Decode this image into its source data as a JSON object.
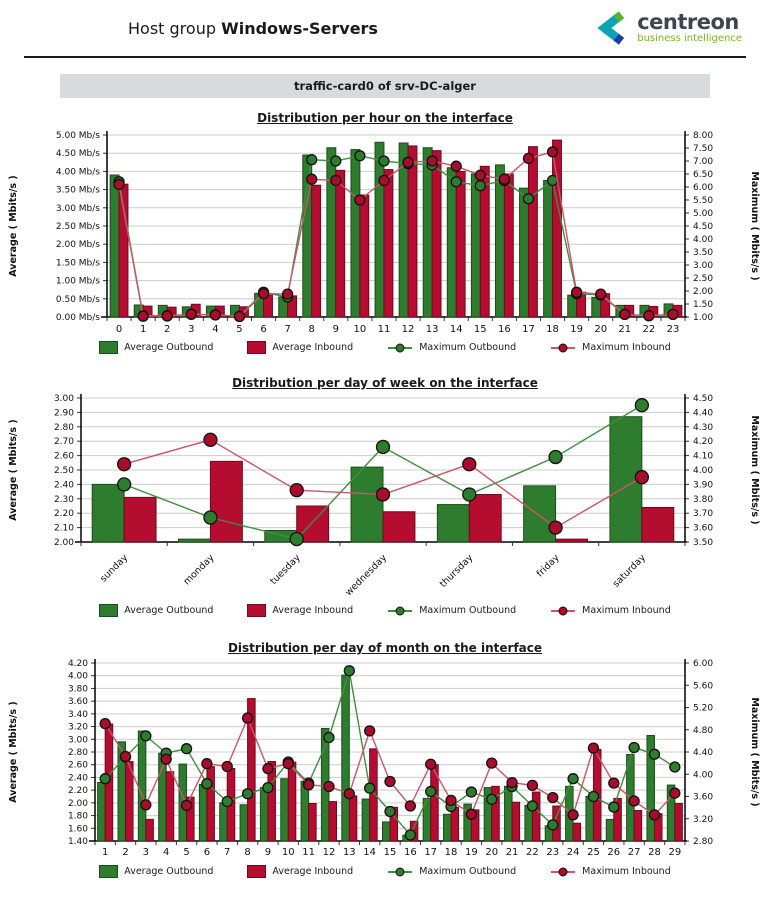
{
  "page": {
    "header": {
      "title_prefix": "Host group",
      "title_bold": "Windows-Servers"
    },
    "logo": {
      "brand": "centreon",
      "tagline": "business intelligence"
    },
    "section_title": "traffic-card0 of srv-DC-alger",
    "legend": {
      "avg_out": "Average Outbound",
      "avg_in": "Average Inbound",
      "max_out": "Maximum Outbound",
      "max_in": "Maximum Inbound"
    },
    "colors": {
      "bar_out": "#2e7d2e",
      "bar_out_stroke": "#1b4d1b",
      "bar_in": "#b50d30",
      "bar_in_stroke": "#6e0a1f",
      "line_out": "#3f8f3f",
      "line_in": "#c9566b",
      "dot_out": "#2e7d2e",
      "dot_in": "#a80e2c",
      "grid": "#cccccc",
      "axis": "#000000",
      "tagline_green": "#7ab51d",
      "brand_dark": "#3b4652",
      "logo_teal": "#0aa4b4",
      "logo_green": "#57b32b",
      "logo_blue": "#1c3e9d",
      "section_bg": "#d8dbdd"
    }
  },
  "chart_data": [
    {
      "type": "bar",
      "title": "Distribution per hour on the interface",
      "categories": [
        "0",
        "1",
        "2",
        "3",
        "4",
        "5",
        "6",
        "7",
        "8",
        "9",
        "10",
        "11",
        "12",
        "13",
        "14",
        "15",
        "16",
        "17",
        "18",
        "19",
        "20",
        "21",
        "22",
        "23"
      ],
      "left_axis": {
        "label": "Average ( Mbits/s )",
        "min": 0,
        "max": 5,
        "step": 0.5,
        "decimals": 2,
        "tick_suffix": " Mb/s"
      },
      "right_axis": {
        "label": "Maximum ( Mbits/s )",
        "min": 1,
        "max": 8,
        "step": 0.5,
        "decimals": 2
      },
      "grid": true,
      "legend_position": "bottom",
      "series": [
        {
          "name": "Average Outbound",
          "type": "bar",
          "axis": "left",
          "values": [
            3.9,
            0.33,
            0.32,
            0.28,
            0.3,
            0.32,
            0.65,
            0.55,
            4.45,
            4.65,
            4.6,
            4.8,
            4.78,
            4.65,
            4.1,
            3.93,
            4.18,
            3.54,
            3.75,
            0.6,
            0.54,
            0.32,
            0.32,
            0.36
          ]
        },
        {
          "name": "Average Inbound",
          "type": "bar",
          "axis": "left",
          "values": [
            3.65,
            0.3,
            0.27,
            0.35,
            0.3,
            0.28,
            0.6,
            0.58,
            3.62,
            4.03,
            3.35,
            4.05,
            4.7,
            4.57,
            4.0,
            4.14,
            3.93,
            4.68,
            4.86,
            0.68,
            0.64,
            0.32,
            0.29,
            0.32
          ]
        },
        {
          "name": "Maximum Outbound",
          "type": "line",
          "axis": "right",
          "values": [
            6.2,
            1.05,
            1.05,
            1.1,
            1.08,
            1.03,
            1.95,
            1.77,
            7.05,
            7.0,
            7.2,
            7.0,
            6.9,
            6.85,
            6.2,
            6.05,
            6.25,
            5.55,
            6.25,
            1.9,
            1.85,
            1.1,
            1.05,
            1.1
          ]
        },
        {
          "name": "Maximum Inbound",
          "type": "line",
          "axis": "right",
          "values": [
            6.1,
            1.03,
            1.04,
            1.11,
            1.08,
            1.02,
            1.9,
            1.88,
            6.3,
            6.25,
            5.5,
            6.25,
            6.95,
            7.0,
            6.8,
            6.45,
            6.3,
            7.1,
            7.35,
            1.95,
            1.88,
            1.1,
            1.05,
            1.1
          ]
        }
      ]
    },
    {
      "type": "bar",
      "title": "Distribution per day of week on the interface",
      "categories": [
        "sunday",
        "monday",
        "tuesday",
        "wednesday",
        "thursday",
        "friday",
        "saturday"
      ],
      "left_axis": {
        "label": "Average ( Mbits/s )",
        "min": 2.0,
        "max": 3.0,
        "step": 0.1,
        "decimals": 2,
        "tick_suffix": ""
      },
      "right_axis": {
        "label": "Maximum ( Mbits/s )",
        "min": 3.5,
        "max": 4.5,
        "step": 0.1,
        "decimals": 2
      },
      "grid": true,
      "legend_position": "bottom",
      "series": [
        {
          "name": "Average Outbound",
          "type": "bar",
          "axis": "left",
          "values": [
            2.4,
            2.02,
            2.08,
            2.52,
            2.26,
            2.39,
            2.87
          ]
        },
        {
          "name": "Average Inbound",
          "type": "bar",
          "axis": "left",
          "values": [
            2.31,
            2.56,
            2.25,
            2.21,
            2.33,
            2.02,
            2.24
          ]
        },
        {
          "name": "Maximum Outbound",
          "type": "line",
          "axis": "right",
          "values": [
            3.9,
            3.67,
            3.52,
            4.16,
            3.83,
            4.09,
            4.45
          ]
        },
        {
          "name": "Maximum Inbound",
          "type": "line",
          "axis": "right",
          "values": [
            4.04,
            4.21,
            3.86,
            3.83,
            4.04,
            3.6,
            3.95
          ]
        }
      ]
    },
    {
      "type": "bar",
      "title": "Distribution per day of month on the interface",
      "categories": [
        "1",
        "2",
        "3",
        "4",
        "5",
        "6",
        "7",
        "8",
        "9",
        "10",
        "11",
        "12",
        "13",
        "14",
        "15",
        "16",
        "17",
        "18",
        "19",
        "20",
        "21",
        "22",
        "23",
        "24",
        "25",
        "26",
        "27",
        "28",
        "29"
      ],
      "left_axis": {
        "label": "Average ( Mbits/s )",
        "min": 1.4,
        "max": 4.2,
        "step": 0.2,
        "decimals": 2,
        "tick_suffix": ""
      },
      "right_axis": {
        "label": "Maximum ( Mbits/s )",
        "min": 2.8,
        "max": 6.0,
        "step": 0.4,
        "decimals": 2
      },
      "grid": true,
      "legend_position": "bottom",
      "series": [
        {
          "name": "Average Outbound",
          "type": "bar",
          "axis": "left",
          "values": [
            2.32,
            2.96,
            3.13,
            2.78,
            2.61,
            2.29,
            2.0,
            1.97,
            2.24,
            2.38,
            2.34,
            3.17,
            4.01,
            2.06,
            1.7,
            1.49,
            2.07,
            1.82,
            1.98,
            2.24,
            2.26,
            1.96,
            1.64,
            2.26,
            2.1,
            1.74,
            2.76,
            3.06,
            2.28
          ]
        },
        {
          "name": "Average Inbound",
          "type": "bar",
          "axis": "left",
          "values": [
            3.24,
            2.65,
            1.74,
            2.49,
            2.09,
            2.57,
            2.54,
            3.64,
            2.65,
            2.64,
            1.99,
            2.02,
            2.11,
            2.85,
            1.93,
            1.71,
            2.6,
            1.93,
            1.89,
            2.26,
            2.01,
            2.17,
            1.95,
            1.68,
            2.84,
            2.07,
            1.88,
            1.83,
            1.99
          ]
        },
        {
          "name": "Maximum Outbound",
          "type": "line",
          "axis": "right",
          "values": [
            3.92,
            4.31,
            4.69,
            4.38,
            4.46,
            3.83,
            3.51,
            3.65,
            3.76,
            4.22,
            3.84,
            4.66,
            5.86,
            3.75,
            3.33,
            2.91,
            3.69,
            3.42,
            3.68,
            3.55,
            3.78,
            3.43,
            3.09,
            3.92,
            3.6,
            3.41,
            4.48,
            4.36,
            4.13
          ]
        },
        {
          "name": "Maximum Inbound",
          "type": "line",
          "axis": "right",
          "values": [
            4.91,
            4.32,
            3.45,
            4.27,
            3.44,
            4.19,
            4.14,
            5.01,
            4.1,
            4.19,
            3.81,
            3.78,
            3.65,
            4.78,
            3.87,
            3.43,
            4.18,
            3.53,
            3.28,
            4.2,
            3.85,
            3.8,
            3.58,
            3.27,
            4.47,
            3.84,
            3.52,
            3.27,
            3.66
          ]
        }
      ]
    }
  ]
}
